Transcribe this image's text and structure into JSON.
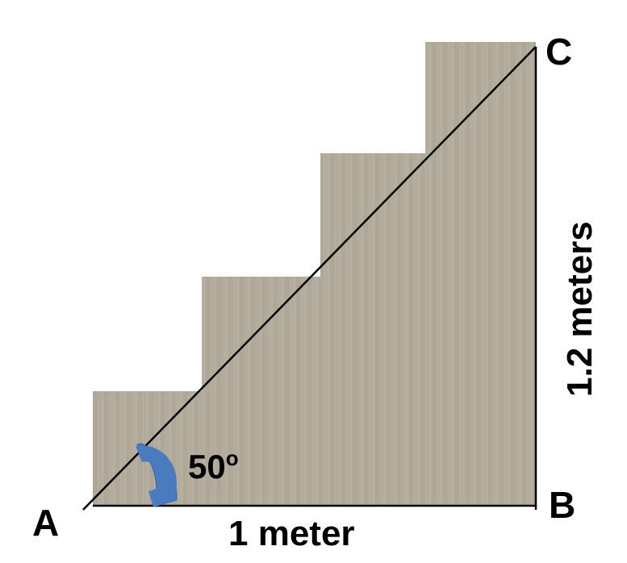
{
  "diagram": {
    "vertices": {
      "a": "A",
      "b": "B",
      "c": "C"
    },
    "sides": {
      "base": "1 meter",
      "height": "1.2 meters"
    },
    "angle": {
      "value": "50",
      "degree_mark": "o"
    },
    "colors": {
      "stairs": "#b3ab9c",
      "angle_marker": "#4a7bbf",
      "lines": "#000000"
    }
  }
}
